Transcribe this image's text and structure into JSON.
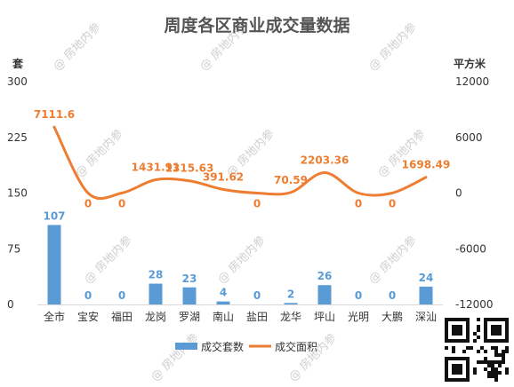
{
  "chart_data": {
    "type": "bar",
    "title": "周度各区商业成交量数据",
    "categories": [
      "全市",
      "宝安",
      "福田",
      "龙岗",
      "罗湖",
      "南山",
      "盐田",
      "龙华",
      "坪山",
      "光明",
      "大鹏",
      "深汕"
    ],
    "series": [
      {
        "name": "成交套数",
        "type": "bar",
        "axis": "left",
        "values": [
          107,
          0,
          0,
          28,
          23,
          4,
          0,
          2,
          26,
          0,
          0,
          24
        ],
        "labels": [
          "107",
          "0",
          "0",
          "28",
          "23",
          "4",
          "0",
          "2",
          "26",
          "0",
          "0",
          "24"
        ]
      },
      {
        "name": "成交面积",
        "type": "line",
        "axis": "right",
        "values": [
          7111.6,
          0,
          0,
          1431.91,
          1315.63,
          391.62,
          0,
          70.59,
          2203.36,
          0,
          0,
          1698.49
        ],
        "labels": [
          "7111.6",
          "0",
          "0",
          "1431.91",
          "1315.63",
          "391.62",
          "0",
          "70.59",
          "2203.36",
          "0",
          "0",
          "1698.49"
        ]
      }
    ],
    "left_axis": {
      "unit": "套",
      "ylim": [
        0,
        300
      ],
      "ticks": [
        "0",
        "75",
        "150",
        "225",
        "300"
      ]
    },
    "right_axis": {
      "unit": "平方米",
      "ylim": [
        -12000,
        12000
      ],
      "ticks": [
        "-12000",
        "-6000",
        "0",
        "6000",
        "12000"
      ]
    },
    "legend": {
      "position": "bottom"
    },
    "grid": false,
    "colors": {
      "bar": "#5b9bd5",
      "line": "#ed7d31"
    }
  },
  "watermark": "@ 房地内参"
}
